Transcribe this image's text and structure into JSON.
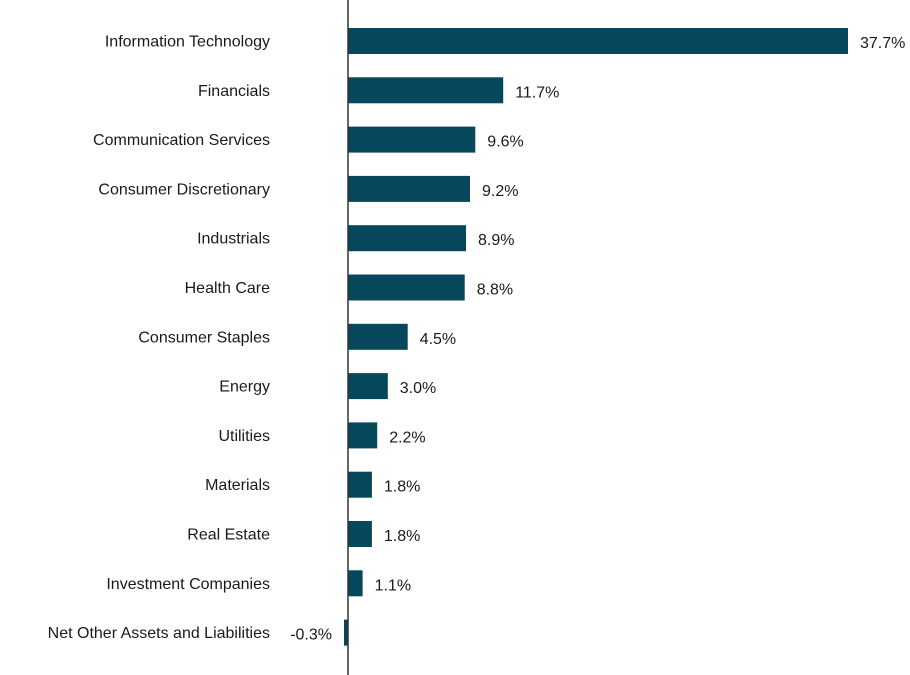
{
  "chart_data": {
    "type": "bar",
    "orientation": "horizontal",
    "categories": [
      "Information Technology",
      "Financials",
      "Communication Services",
      "Consumer Discretionary",
      "Industrials",
      "Health Care",
      "Consumer Staples",
      "Energy",
      "Utilities",
      "Materials",
      "Real Estate",
      "Investment Companies",
      "Net Other Assets and Liabilities"
    ],
    "values": [
      37.7,
      11.7,
      9.6,
      9.2,
      8.9,
      8.8,
      4.5,
      3.0,
      2.2,
      1.8,
      1.8,
      1.1,
      -0.3
    ],
    "value_labels": [
      "37.7%",
      "11.7%",
      "9.6%",
      "9.2%",
      "8.9%",
      "8.8%",
      "4.5%",
      "3.0%",
      "2.2%",
      "1.8%",
      "1.8%",
      "1.1%",
      "-0.3%"
    ],
    "unit": "%",
    "xlim": [
      -0.3,
      37.7
    ],
    "title": "",
    "xlabel": "",
    "ylabel": "",
    "grid": false,
    "legend": "none",
    "bar_color": "#06475c",
    "axis_color": "#333333"
  }
}
